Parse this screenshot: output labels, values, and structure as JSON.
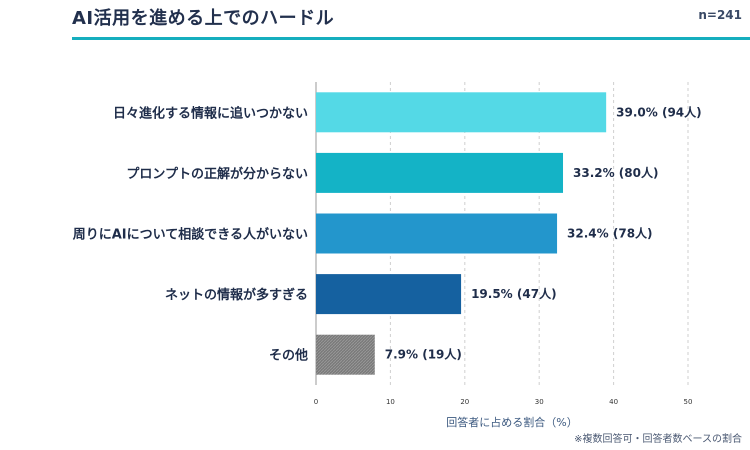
{
  "header": {
    "title": "AI活用を進める上でのハードル",
    "n_label": "n=241",
    "accent": "#16aebe"
  },
  "footnote": "※複数回答可・回答者数ベースの割合",
  "chart_data": {
    "type": "bar",
    "orientation": "horizontal",
    "categories": [
      "日々進化する情報に追いつかない",
      "プロンプトの正解が分からない",
      "周りにAIについて相談できる人がいない",
      "ネットの情報が多すぎる",
      "その他"
    ],
    "values": [
      39.0,
      33.2,
      32.4,
      19.5,
      7.9
    ],
    "data_labels": [
      "39.0% (94人)",
      "33.2% (80人)",
      "32.4% (78人)",
      "19.5% (47人)",
      "7.9% (19人)"
    ],
    "colors": [
      "#54d9e6",
      "#14b3c6",
      "#2396cc",
      "#1561a0",
      "#777777"
    ],
    "xlim": [
      0,
      50
    ],
    "xticks": [
      0,
      10,
      20,
      30,
      40,
      50
    ],
    "xlabel": "回答者に占める割合（%）",
    "grid": "vertical dashed"
  }
}
